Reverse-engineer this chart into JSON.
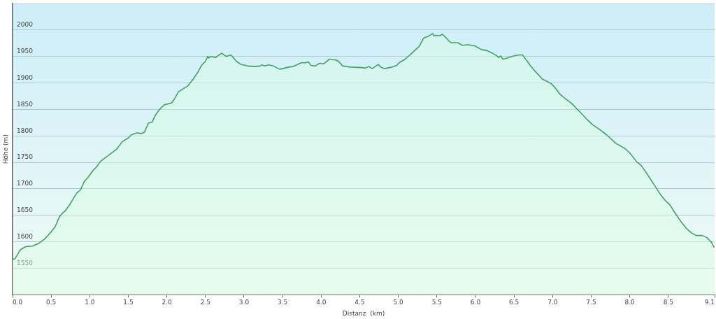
{
  "chart_data": {
    "type": "area",
    "xlabel": "Distanz  (km)",
    "ylabel": "Höhe (m)",
    "color": "#3da55d",
    "x": [
      0,
      0.03,
      0.06,
      0.1,
      0.17,
      0.26,
      0.29,
      0.35,
      0.42,
      0.49,
      0.55,
      0.61,
      0.66,
      0.68,
      0.74,
      0.83,
      0.88,
      0.93,
      0.98,
      1.05,
      1.08,
      1.14,
      1.23,
      1.35,
      1.42,
      1.5,
      1.54,
      1.62,
      1.66,
      1.71,
      1.76,
      1.81,
      1.85,
      1.91,
      1.97,
      2.0,
      2.06,
      2.09,
      2.15,
      2.22,
      2.27,
      2.34,
      2.4,
      2.45,
      2.5,
      2.53,
      2.54,
      2.57,
      2.63,
      2.68,
      2.71,
      2.77,
      2.83,
      2.9,
      2.96,
      3.05,
      3.14,
      3.21,
      3.23,
      3.27,
      3.32,
      3.38,
      3.46,
      3.5,
      3.58,
      3.64,
      3.74,
      3.8,
      3.83,
      3.87,
      3.92,
      3.98,
      4.03,
      4.11,
      4.15,
      4.2,
      4.23,
      4.28,
      4.38,
      4.53,
      4.57,
      4.62,
      4.66,
      4.74,
      4.77,
      4.82,
      4.92,
      4.98,
      5.01,
      5.09,
      5.16,
      5.21,
      5.27,
      5.33,
      5.39,
      5.43,
      5.45,
      5.46,
      5.49,
      5.54,
      5.57,
      5.62,
      5.68,
      5.77,
      5.83,
      5.9,
      5.99,
      6.08,
      6.15,
      6.21,
      6.27,
      6.3,
      6.33,
      6.35,
      6.39,
      6.45,
      6.52,
      6.58,
      6.61,
      6.66,
      6.72,
      6.78,
      6.87,
      6.98,
      7.02,
      7.1,
      7.16,
      7.25,
      7.35,
      7.44,
      7.52,
      7.61,
      7.7,
      7.82,
      7.93,
      8.0,
      8.09,
      8.15,
      8.23,
      8.32,
      8.4,
      8.46,
      8.52,
      8.58,
      8.65,
      8.73,
      8.8,
      8.86,
      8.94,
      9.0,
      9.06,
      9.09,
      9.1
    ],
    "values": [
      1567,
      1568,
      1575,
      1585,
      1591,
      1592,
      1594,
      1598,
      1606,
      1617,
      1628,
      1648,
      1656,
      1658,
      1670,
      1692,
      1698,
      1714,
      1722,
      1736,
      1740,
      1752,
      1762,
      1775,
      1789,
      1796,
      1802,
      1806,
      1804,
      1807,
      1824,
      1826,
      1839,
      1851,
      1859,
      1860,
      1862,
      1868,
      1883,
      1890,
      1894,
      1907,
      1920,
      1933,
      1941,
      1950,
      1947,
      1950,
      1948,
      1953,
      1956,
      1950,
      1953,
      1941,
      1935,
      1932,
      1931,
      1932,
      1934,
      1932,
      1934,
      1932,
      1926,
      1927,
      1930,
      1931,
      1938,
      1938,
      1940,
      1933,
      1932,
      1937,
      1936,
      1945,
      1944,
      1943,
      1940,
      1932,
      1930,
      1929,
      1928,
      1931,
      1927,
      1935,
      1930,
      1927,
      1930,
      1933,
      1938,
      1945,
      1954,
      1961,
      1969,
      1985,
      1988,
      1992,
      1993,
      1989,
      1990,
      1989,
      1992,
      1985,
      1976,
      1976,
      1971,
      1972,
      1970,
      1963,
      1961,
      1957,
      1952,
      1948,
      1951,
      1945,
      1946,
      1949,
      1952,
      1953,
      1953,
      1943,
      1931,
      1921,
      1907,
      1899,
      1893,
      1878,
      1871,
      1861,
      1846,
      1832,
      1821,
      1812,
      1802,
      1786,
      1777,
      1768,
      1751,
      1744,
      1727,
      1707,
      1689,
      1678,
      1670,
      1656,
      1641,
      1626,
      1617,
      1612,
      1612,
      1608,
      1599,
      1590,
      1590
    ],
    "xlim": [
      0,
      9.1
    ],
    "ylim": [
      1500,
      2050
    ],
    "xticks": [
      {
        "value": 0,
        "label": "0.0"
      },
      0.5,
      {
        "value": 1,
        "label": "1.0"
      },
      1.5,
      {
        "value": 2,
        "label": "2.0"
      },
      2.5,
      {
        "value": 3,
        "label": "3.0"
      },
      3.5,
      {
        "value": 4,
        "label": "4.0"
      },
      4.5,
      {
        "value": 5,
        "label": "5.0"
      },
      5.5,
      {
        "value": 6,
        "label": "6.0"
      },
      6.5,
      {
        "value": 7,
        "label": "7.0"
      },
      7.5,
      {
        "value": 8,
        "label": "8.0"
      },
      8.5,
      9.1
    ],
    "yticks": [
      1550,
      1600,
      1650,
      1700,
      1750,
      1800,
      1850,
      1900,
      1950,
      2000
    ],
    "grid": "y"
  }
}
